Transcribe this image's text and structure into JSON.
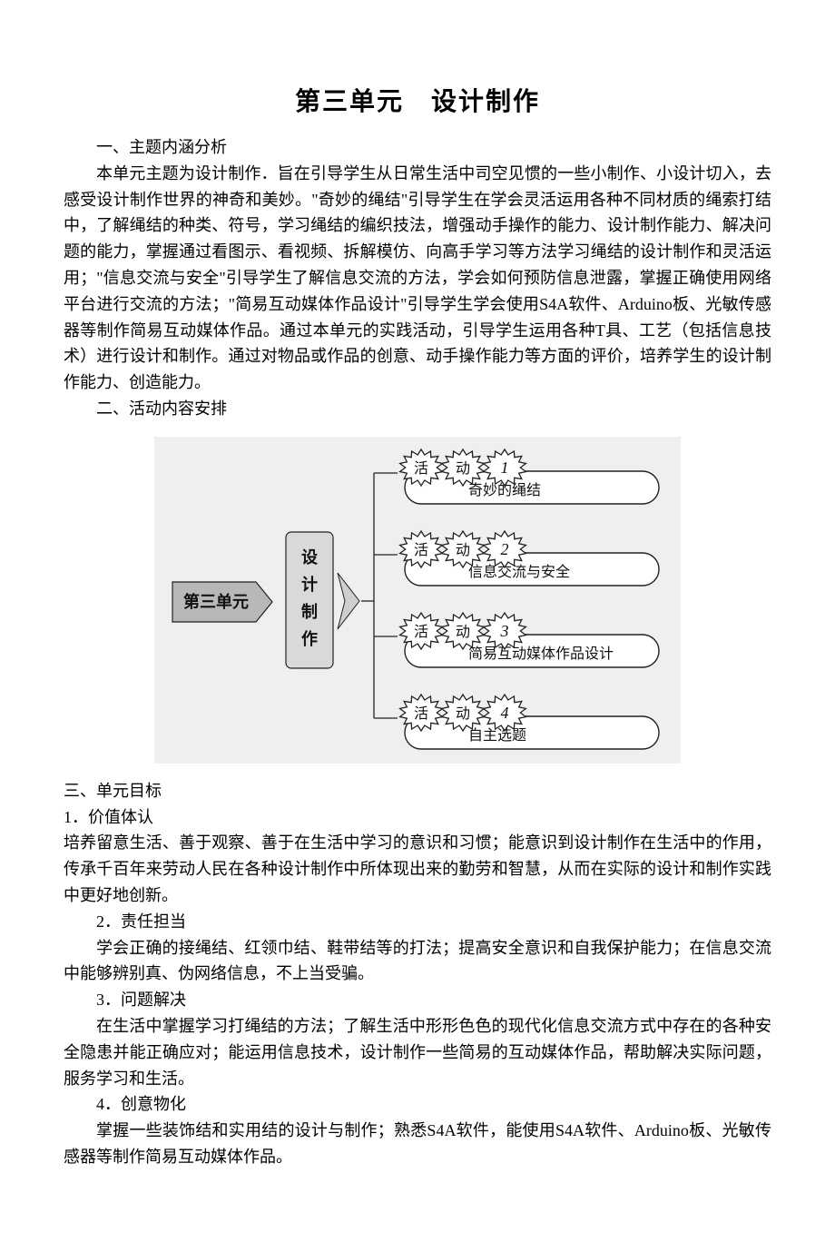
{
  "title": "第三单元　设计制作",
  "section1": {
    "heading": "一、主题内涵分析",
    "para": "本单元主题为设计制作．旨在引导学生从日常生活中司空见惯的一些小制作、小设计切入，去感受设计制作世界的神奇和美妙。\"奇妙的绳结\"引导学生在学会灵活运用各种不同材质的绳索打结中，了解绳结的种类、符号，学习绳结的编织技法，增强动手操作的能力、设计制作能力、解决问题的能力，掌握通过看图示、看视频、拆解模仿、向高手学习等方法学习绳结的设计制作和灵活运用；\"信息交流与安全\"引导学生了解信息交流的方法，学会如何预防信息泄露，掌握正确使用网络平台进行交流的方法；\"简易互动媒体作品设计\"引导学生学会使用S4A软件、Arduino板、光敏传感器等制作简易互动媒体作品。通过本单元的实践活动，引导学生运用各种T具、工艺（包括信息技术）进行设计和制作。通过对物品或作品的创意、动手操作能力等方面的评价，培养学生的设计制作能力、创造能力。"
  },
  "section2": {
    "heading": "二、活动内容安排"
  },
  "diagram": {
    "unit_label": "第三单元",
    "vertical_label": "设计制作",
    "activity_prefix": "活",
    "activity_middle": "动",
    "items": [
      {
        "num": "1",
        "label": "奇妙的绳结"
      },
      {
        "num": "2",
        "label": "信息交流与安全"
      },
      {
        "num": "3",
        "label": "简易互动媒体作品设计"
      },
      {
        "num": "4",
        "label": "自主选题"
      }
    ],
    "colors": {
      "bg": "#efefef",
      "unit_fill": "#b8b8b8",
      "unit_stroke": "#222222",
      "box_fill": "#d9d9d9",
      "box_stroke": "#222222",
      "chevron_fill": "#cfcfcf",
      "chevron_stroke": "#222222",
      "bubble_stroke": "#222222",
      "bubble_fill": "#ffffff",
      "burst_fill": "#ffffff",
      "burst_stroke": "#222222",
      "line": "#222222"
    }
  },
  "section3": {
    "heading": "三、单元目标",
    "items": [
      {
        "num": "1．价值体认",
        "text": "培养留意生活、善于观察、善于在生活中学习的意识和习惯；能意识到设计制作在生活中的作用，传承千百年来劳动人民在各种设计制作中所体现出来的勤劳和智慧，从而在实际的设计和制作实践中更好地创新。"
      },
      {
        "num": "2．责任担当",
        "text": "学会正确的接绳结、红领巾结、鞋带结等的打法；提高安全意识和自我保护能力；在信息交流中能够辨别真、伪网络信息，不上当受骗。"
      },
      {
        "num": "3．问题解决",
        "text": "在生活中掌握学习打绳结的方法；了解生活中形形色色的现代化信息交流方式中存在的各种安全隐患并能正确应对；能运用信息技术，设计制作一些简易的互动媒体作品，帮助解决实际问题，服务学习和生活。"
      },
      {
        "num": "4．创意物化",
        "text": "掌握一些装饰结和实用结的设计与制作；熟悉S4A软件，能使用S4A软件、Arduino板、光敏传感器等制作简易互动媒体作品。"
      }
    ]
  }
}
